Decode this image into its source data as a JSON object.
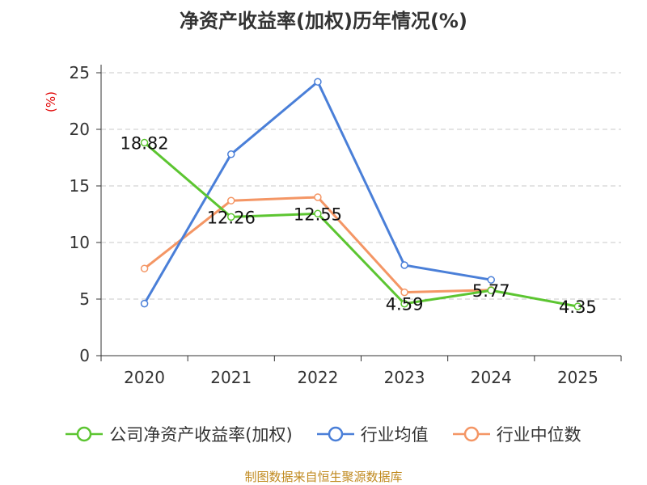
{
  "chart_data": {
    "type": "line",
    "title": "净资产收益率(加权)历年情况(%)",
    "ylabel": "(%)",
    "xlabel": "",
    "ylim": [
      0,
      25
    ],
    "yticks": [
      0,
      5,
      10,
      15,
      20,
      25
    ],
    "categories": [
      "2020",
      "2021",
      "2022",
      "2023",
      "2024",
      "2025"
    ],
    "grid": true,
    "legend_position": "bottom",
    "series": [
      {
        "name": "公司净资产收益率(加权)",
        "color": "#5cc531",
        "values": [
          18.82,
          12.26,
          12.55,
          4.59,
          5.77,
          4.35
        ],
        "labels": [
          "18.82",
          "12.26",
          "12.55",
          "4.59",
          "5.77",
          "4.35"
        ]
      },
      {
        "name": "行业均值",
        "color": "#4a7fd8",
        "values": [
          4.6,
          17.8,
          24.2,
          8.0,
          6.7,
          null
        ]
      },
      {
        "name": "行业中位数",
        "color": "#f49665",
        "values": [
          7.7,
          13.7,
          14.0,
          5.6,
          5.8,
          null
        ]
      }
    ]
  },
  "source_note": "制图数据来自恒生聚源数据库"
}
